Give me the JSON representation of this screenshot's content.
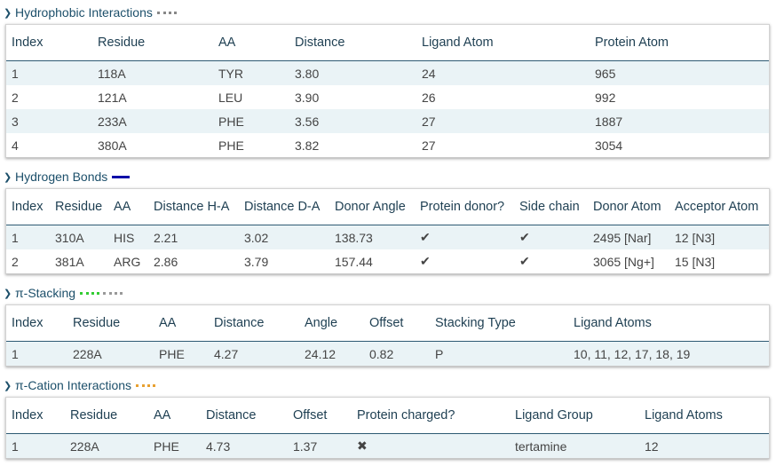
{
  "hydrophobic": {
    "title": "Hydrophobic Interactions",
    "legend_color": "#888888",
    "headers": [
      "Index",
      "Residue",
      "AA",
      "Distance",
      "Ligand Atom",
      "Protein Atom"
    ],
    "rows": [
      [
        "1",
        "118A",
        "TYR",
        "3.80",
        "24",
        "965"
      ],
      [
        "2",
        "121A",
        "LEU",
        "3.90",
        "26",
        "992"
      ],
      [
        "3",
        "233A",
        "PHE",
        "3.56",
        "27",
        "1887"
      ],
      [
        "4",
        "380A",
        "PHE",
        "3.82",
        "27",
        "3054"
      ]
    ]
  },
  "hbonds": {
    "title": "Hydrogen Bonds",
    "legend_color": "#0a0aa8",
    "headers": [
      "Index",
      "Residue",
      "AA",
      "Distance H-A",
      "Distance D-A",
      "Donor Angle",
      "Protein donor?",
      "Side chain",
      "Donor Atom",
      "Acceptor Atom"
    ],
    "rows": [
      [
        "1",
        "310A",
        "HIS",
        "2.21",
        "3.02",
        "138.73",
        "✔",
        "✔",
        "2495 [Nar]",
        "12 [N3]"
      ],
      [
        "2",
        "381A",
        "ARG",
        "2.86",
        "3.79",
        "157.44",
        "✔",
        "✔",
        "3065 [Ng+]",
        "15 [N3]"
      ]
    ]
  },
  "pistacking": {
    "title": "π-Stacking",
    "legend_colors": [
      "#33cc33",
      "#999999"
    ],
    "headers": [
      "Index",
      "Residue",
      "AA",
      "Distance",
      "Angle",
      "Offset",
      "Stacking Type",
      "Ligand Atoms"
    ],
    "rows": [
      [
        "1",
        "228A",
        "PHE",
        "4.27",
        "24.12",
        "0.82",
        "P",
        "10, 11, 12, 17, 18, 19"
      ]
    ]
  },
  "pication": {
    "title": "π-Cation Interactions",
    "legend_color": "#e8a030",
    "headers": [
      "Index",
      "Residue",
      "AA",
      "Distance",
      "Offset",
      "Protein charged?",
      "Ligand Group",
      "Ligand Atoms"
    ],
    "rows": [
      [
        "1",
        "228A",
        "PHE",
        "4.73",
        "1.37",
        "✖",
        "tertamine",
        "12"
      ]
    ]
  }
}
